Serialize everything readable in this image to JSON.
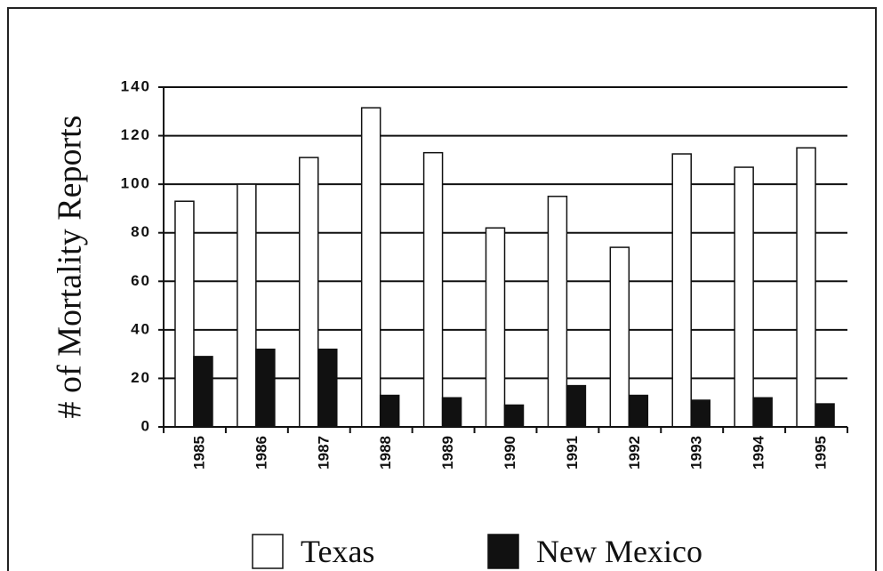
{
  "chart_data": {
    "type": "bar",
    "y_label": "# of Mortality Reports",
    "categories": [
      "1985",
      "1986",
      "1987",
      "1988",
      "1989",
      "1990",
      "1991",
      "1992",
      "1993",
      "1994",
      "1995"
    ],
    "series": [
      {
        "name": "Texas",
        "color": "#ffffff",
        "values": [
          93,
          100,
          111,
          131.5,
          113,
          82,
          95,
          74,
          112.5,
          107,
          115
        ]
      },
      {
        "name": "New Mexico",
        "color": "#111111",
        "values": [
          29,
          32,
          32,
          13,
          12,
          9,
          17,
          13,
          11,
          12,
          9.5
        ]
      }
    ],
    "ylim": [
      0,
      140
    ],
    "yticks": [
      0,
      20,
      40,
      60,
      80,
      100,
      120,
      140
    ],
    "grid": true
  }
}
